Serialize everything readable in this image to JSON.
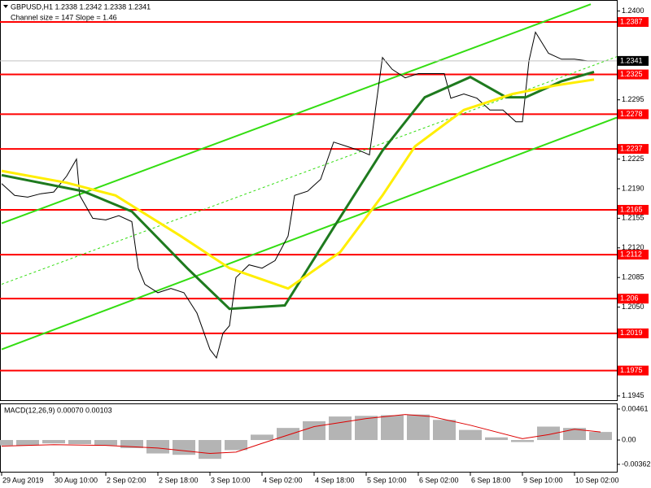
{
  "chart_data": [
    {
      "type": "line",
      "title": "GBPUSD,H1  1.2338 1.2342 1.2338 1.2341",
      "subtitle": "Channel size = 147 Slope = 1.46",
      "xlim": [
        0,
        189
      ],
      "ylim": [
        1.194,
        1.2413
      ],
      "xticks": [
        {
          "value": 0,
          "label": "29 Aug 2019"
        },
        {
          "value": 16,
          "label": "30 Aug 10:00"
        },
        {
          "value": 32,
          "label": "2 Sep 02:00"
        },
        {
          "value": 48,
          "label": "2 Sep 18:00"
        },
        {
          "value": 64,
          "label": "3 Sep 10:00"
        },
        {
          "value": 80,
          "label": "4 Sep 02:00"
        },
        {
          "value": 96,
          "label": "4 Sep 18:00"
        },
        {
          "value": 112,
          "label": "5 Sep 10:00"
        },
        {
          "value": 128,
          "label": "6 Sep 02:00"
        },
        {
          "value": 144,
          "label": "6 Sep 18:00"
        },
        {
          "value": 160,
          "label": "9 Sep 10:00"
        },
        {
          "value": 176,
          "label": "10 Sep 02:00"
        }
      ],
      "yticks": [
        {
          "value": 1.24,
          "label": "1.2400"
        },
        1.2295,
        1.2225,
        {
          "value": 1.219,
          "label": "1.2190"
        },
        1.2155,
        {
          "value": 1.212,
          "label": "1.2120"
        },
        1.2085,
        {
          "value": 1.205,
          "label": "1.2050"
        },
        1.1945
      ],
      "series": [
        {
          "color": "#000000",
          "width": 1,
          "x": [
            0,
            4,
            8,
            12,
            16,
            20,
            23,
            24,
            28,
            32,
            36,
            40,
            42,
            44,
            48,
            52,
            56,
            60,
            64,
            66,
            68,
            70,
            72,
            76,
            80,
            84,
            88,
            90,
            94,
            98,
            102,
            106,
            110,
            113,
            115,
            117,
            120,
            124,
            128,
            132,
            136,
            138,
            142,
            146,
            150,
            154,
            158,
            160,
            162,
            164,
            168,
            172,
            176,
            180,
            183
          ],
          "values": [
            1.2196,
            1.2182,
            1.218,
            1.2184,
            1.2186,
            1.2205,
            1.2225,
            1.2182,
            1.2155,
            1.2153,
            1.2158,
            1.2151,
            1.2096,
            1.2077,
            1.2067,
            1.2072,
            1.2067,
            1.2043,
            1.2,
            1.199,
            1.2019,
            1.2028,
            1.2085,
            1.21,
            1.2096,
            1.2105,
            1.2134,
            1.2182,
            1.2187,
            1.2201,
            1.2245,
            1.224,
            1.2235,
            1.223,
            1.2288,
            1.2345,
            1.2331,
            1.2321,
            1.2326,
            1.2326,
            1.2326,
            1.2297,
            1.2302,
            1.2297,
            1.2283,
            1.2283,
            1.2269,
            1.2269,
            1.2341,
            1.2375,
            1.235,
            1.2343,
            1.2343,
            1.2341,
            1.2341
          ]
        },
        {
          "color": "#1e7a1e",
          "width": 3,
          "x": [
            0,
            25,
            40,
            57,
            70,
            87,
            102,
            117,
            130,
            144,
            155,
            161,
            172,
            182
          ],
          "values": [
            1.2206,
            1.2187,
            1.2163,
            1.2096,
            1.2048,
            1.2052,
            1.2144,
            1.2235,
            1.2298,
            1.2322,
            1.2298,
            1.2298,
            1.2317,
            1.2328
          ]
        },
        {
          "color": "#ffee00",
          "width": 3,
          "x": [
            0,
            20,
            35,
            55,
            70,
            88,
            104,
            117,
            127,
            142,
            157,
            170,
            182
          ],
          "values": [
            1.2211,
            1.2197,
            1.2182,
            1.2134,
            1.2096,
            1.2072,
            1.2115,
            1.2182,
            1.224,
            1.2283,
            1.2302,
            1.2312,
            1.2319
          ]
        }
      ],
      "channel_lines": [
        {
          "color": "#33dd11",
          "dashed": false,
          "x": [
            0,
            181
          ],
          "values": [
            1.2149,
            1.2408
          ]
        },
        {
          "color": "#33dd11",
          "dashed": false,
          "x": [
            0,
            189
          ],
          "values": [
            1.2,
            1.2274
          ]
        },
        {
          "color": "#33dd11",
          "dashed": true,
          "x": [
            0,
            189
          ],
          "values": [
            1.2077,
            1.2346
          ]
        }
      ],
      "levels": {
        "color": "#ff0000",
        "values": [
          1.2387,
          1.2325,
          1.2278,
          1.2237,
          1.2165,
          1.2112,
          1.206,
          1.2019,
          1.1975
        ]
      },
      "current_price": 1.2341
    },
    {
      "type": "bar",
      "title": "MACD(12,26,9) 0.00070 0.00103",
      "ylim": [
        -0.00472,
        0.00533
      ],
      "yticks": [
        0.00461,
        {
          "value": 0,
          "label": "0.00"
        },
        -0.00362
      ],
      "series": [
        {
          "color": "#b4b4b4",
          "x": [
            0,
            8,
            16,
            24,
            32,
            40,
            48,
            56,
            64,
            72,
            80,
            88,
            96,
            104,
            112,
            120,
            128,
            136,
            144,
            152,
            160,
            168,
            176,
            184
          ],
          "values": [
            -0.0008,
            -0.0008,
            -0.0005,
            -0.0006,
            -0.0008,
            -0.0012,
            -0.002,
            -0.0022,
            -0.0028,
            -0.0015,
            0.0008,
            0.0018,
            0.0028,
            0.0035,
            0.0036,
            0.0037,
            0.0038,
            0.003,
            0.0015,
            0.0004,
            -0.0003,
            0.002,
            0.0018,
            0.0012
          ]
        },
        {
          "color": "#dd0000",
          "type": "line",
          "x": [
            0,
            16,
            32,
            48,
            64,
            72,
            80,
            96,
            112,
            124,
            132,
            144,
            160,
            168,
            176,
            184
          ],
          "values": [
            -0.0009,
            -0.0007,
            -0.0008,
            -0.0012,
            -0.002,
            -0.0018,
            -0.0005,
            0.002,
            0.0032,
            0.0038,
            0.0035,
            0.0022,
            0.0002,
            0.0008,
            0.0016,
            0.0012
          ]
        }
      ]
    }
  ]
}
